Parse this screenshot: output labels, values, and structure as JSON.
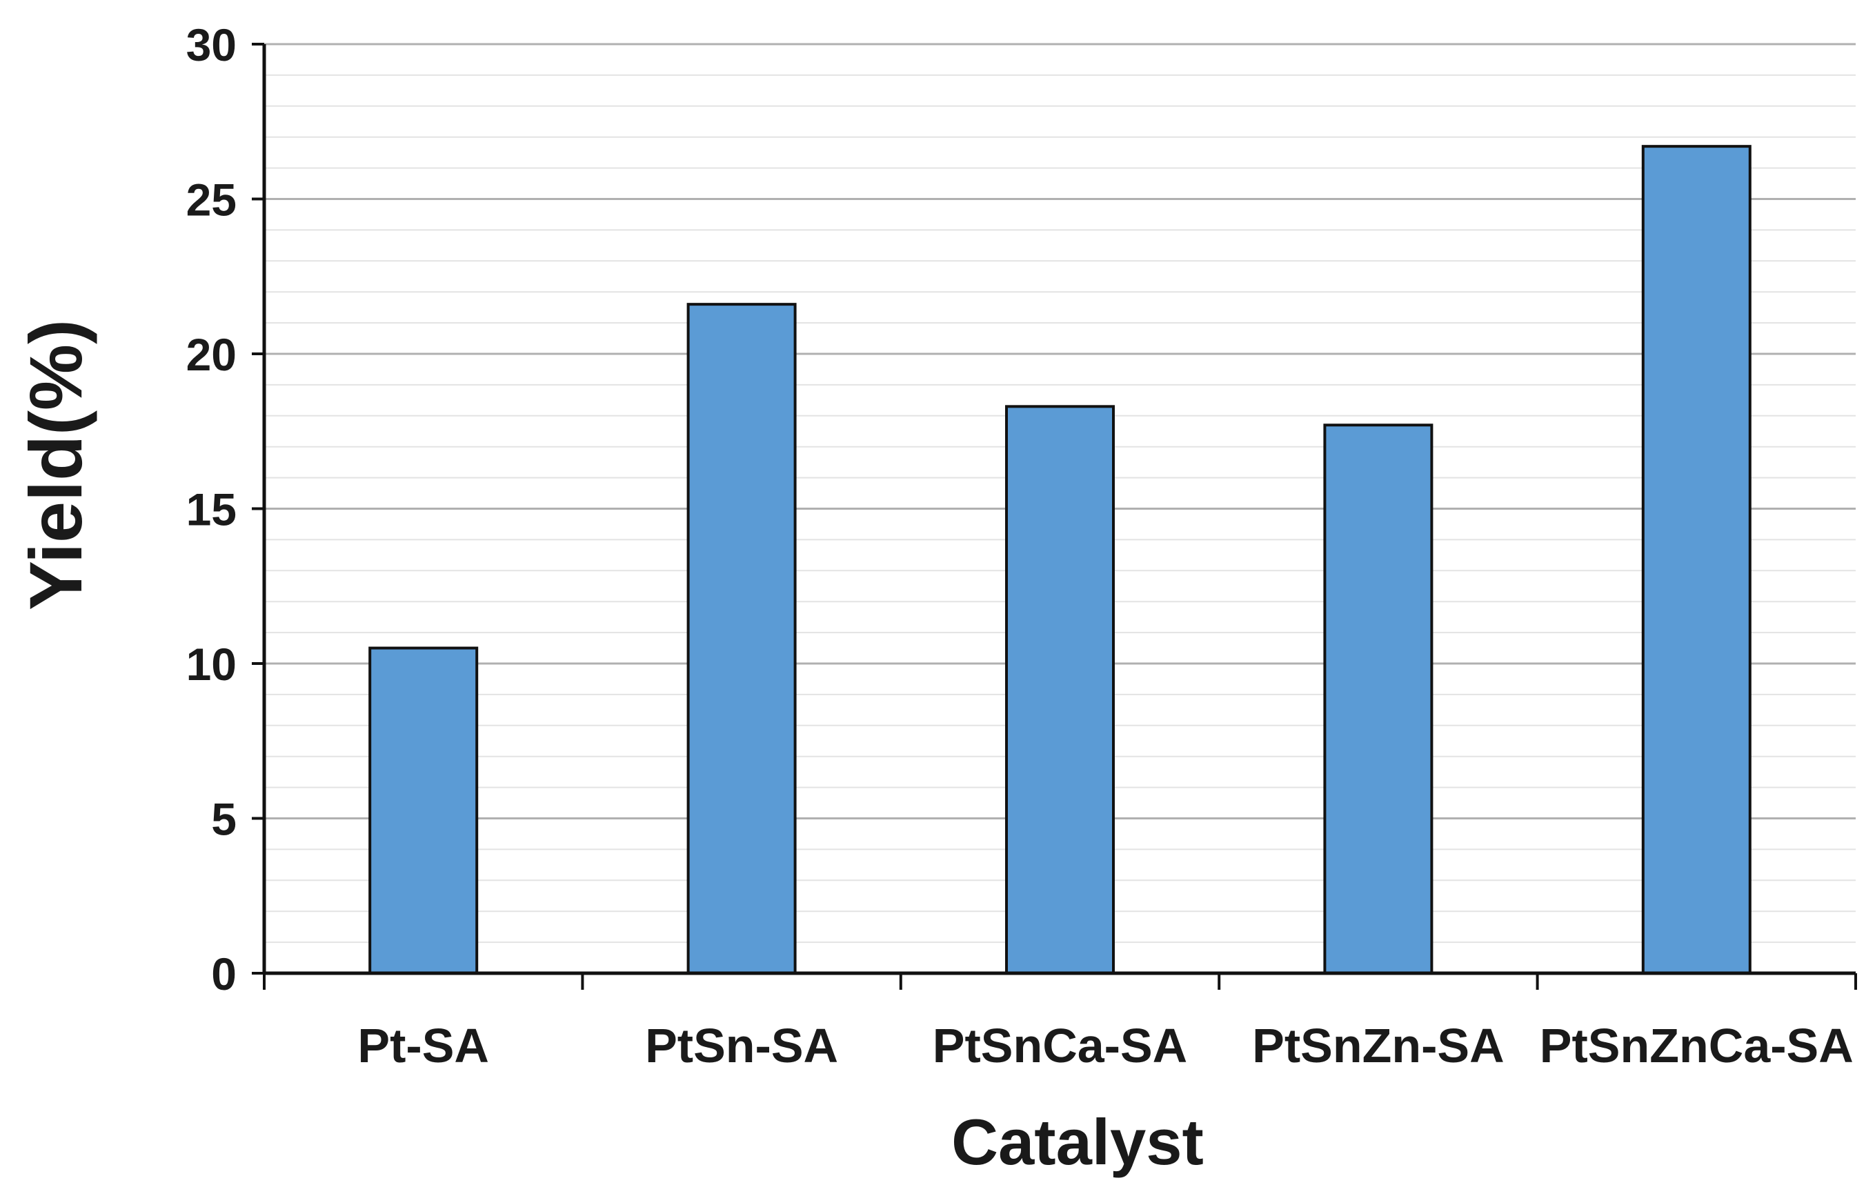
{
  "chart_data": {
    "type": "bar",
    "title": "",
    "xlabel": "Catalyst",
    "ylabel": "Yield(%)",
    "categories": [
      "Pt-SA",
      "PtSn-SA",
      "PtSnCa-SA",
      "PtSnZn-SA",
      "PtSnZnCa-SA"
    ],
    "values": [
      10.5,
      21.6,
      18.3,
      17.7,
      26.7
    ],
    "ylim": [
      0,
      30
    ],
    "yticks": [
      0,
      5,
      10,
      15,
      20,
      25,
      30
    ],
    "grid": true,
    "bar_color": "#5b9bd5",
    "bar_edge_color": "#111111",
    "grid_color": "#b0b0b0",
    "minor_grid_color": "#e3e3e3"
  }
}
